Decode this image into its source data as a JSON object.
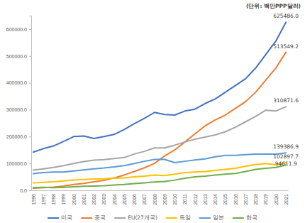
{
  "chart_data": {
    "type": "line",
    "subtitle": "(단위: 백만PPP달러)",
    "categories": [
      "1996",
      "1997",
      "1998",
      "1999",
      "2000",
      "2001",
      "2002",
      "2003",
      "2004",
      "2005",
      "2006",
      "2007",
      "2008",
      "2009",
      "2010",
      "2011",
      "2012",
      "2013",
      "2014",
      "2015",
      "2016",
      "2017",
      "2018",
      "2019",
      "2020",
      "2021"
    ],
    "series": [
      {
        "name": "미국",
        "color": "#4472c4",
        "values": [
          142000,
          155000,
          165000,
          182000,
          200000,
          202000,
          193000,
          200000,
          208000,
          226000,
          248000,
          268000,
          290000,
          282000,
          280000,
          295000,
          302000,
          323000,
          340000,
          365000,
          390000,
          415000,
          455000,
          505000,
          555000,
          625486.0
        ]
      },
      {
        "name": "중국",
        "color": "#ed7d31",
        "values": [
          8000,
          10000,
          12000,
          16000,
          22000,
          26000,
          32000,
          37000,
          46000,
          57000,
          70000,
          84000,
          100000,
          128000,
          150000,
          180000,
          210000,
          240000,
          262000,
          280000,
          305000,
          330000,
          365000,
          410000,
          455000,
          513549.2
        ]
      },
      {
        "name": "EU(27개국)",
        "color": "#a5a5a5",
        "values": [
          75000,
          80000,
          85000,
          92000,
          100000,
          107000,
          112000,
          114000,
          118000,
          122000,
          135000,
          145000,
          158000,
          158000,
          168000,
          180000,
          190000,
          198000,
          206000,
          218000,
          235000,
          255000,
          275000,
          298000,
          295000,
          310871.6
        ]
      },
      {
        "name": "독일",
        "color": "#ffc000",
        "values": [
          28000,
          30000,
          32000,
          35000,
          38000,
          40000,
          42000,
          43000,
          45000,
          46000,
          50000,
          53000,
          57000,
          55000,
          60000,
          66000,
          68000,
          70000,
          74000,
          78000,
          82000,
          90000,
          96000,
          100000,
          95000,
          102897.7
        ]
      },
      {
        "name": "일본",
        "color": "#5b9bd5",
        "values": [
          62000,
          66000,
          68000,
          68000,
          72000,
          76000,
          80000,
          83000,
          87000,
          92000,
          100000,
          108000,
          115000,
          115000,
          103000,
          108000,
          113000,
          117000,
          125000,
          130000,
          130000,
          133000,
          135000,
          135000,
          135000,
          139386.9
        ]
      },
      {
        "name": "한국",
        "color": "#70ad47",
        "values": [
          10000,
          11000,
          10000,
          11000,
          13000,
          15000,
          16000,
          17000,
          20000,
          22000,
          25000,
          28000,
          31000,
          33000,
          38000,
          45000,
          50000,
          53000,
          57000,
          60000,
          63000,
          70000,
          78000,
          82000,
          85000,
          94611.9
        ]
      }
    ],
    "ylim": [
      0,
      650000
    ],
    "yticks": [
      {
        "value": 0,
        "label": "0.0"
      },
      {
        "value": 100000,
        "label": "100000.0"
      },
      {
        "value": 200000,
        "label": "200000.0"
      },
      {
        "value": 300000,
        "label": "300000.0"
      },
      {
        "value": 400000,
        "label": "400000.0"
      },
      {
        "value": 500000,
        "label": "500000.0"
      },
      {
        "value": 600000,
        "label": "600000.0"
      }
    ],
    "grid": false,
    "legend": "bottom",
    "annotations": [
      {
        "x": "2021",
        "y": 625486.0,
        "text": "625486.0"
      },
      {
        "x": "2021",
        "y": 513549.2,
        "text": "513549.2"
      },
      {
        "x": "2021",
        "y": 310871.6,
        "text": "310871.6"
      },
      {
        "x": "2021",
        "y": 139386.9,
        "text": "139386.9"
      },
      {
        "x": "2021",
        "y": 102897.7,
        "text": "102897.7"
      },
      {
        "x": "2021",
        "y": 94611.9,
        "text": "94611.9"
      }
    ]
  }
}
